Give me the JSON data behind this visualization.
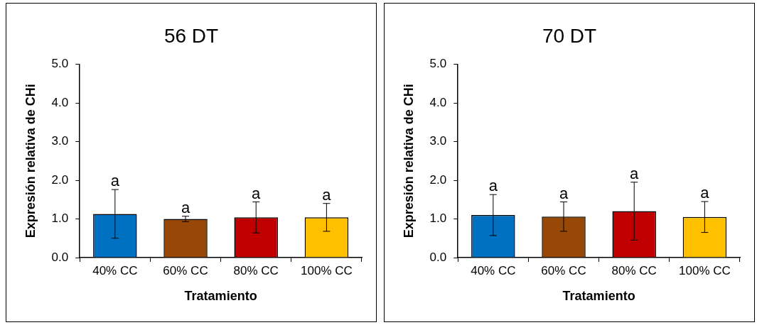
{
  "chart_data": [
    {
      "type": "bar",
      "title": "56 DT",
      "xlabel": "Tratamiento",
      "ylabel": "Expresión relativa de CHi",
      "categories": [
        "40% CC",
        "60% CC",
        "80% CC",
        "100% CC"
      ],
      "values": [
        1.13,
        1.0,
        1.04,
        1.04
      ],
      "errors": [
        0.63,
        0.07,
        0.4,
        0.36
      ],
      "colors": [
        "#0070c0",
        "#974706",
        "#c00000",
        "#ffc000"
      ],
      "ylim": [
        0,
        5
      ],
      "yticks": [
        {
          "value": 0,
          "label": "0.0"
        },
        {
          "value": 1,
          "label": "1.0"
        },
        {
          "value": 2,
          "label": "2.0"
        },
        {
          "value": 3,
          "label": "3.0"
        },
        {
          "value": 4,
          "label": "4.0"
        },
        {
          "value": 5,
          "label": "5.0"
        }
      ],
      "grid": false,
      "legend": false,
      "annotations": [
        "a",
        "a",
        "a",
        "a"
      ]
    },
    {
      "type": "bar",
      "title": "70 DT",
      "xlabel": "Tratamiento",
      "ylabel": "Expresión relativa de CHi",
      "categories": [
        "40% CC",
        "60% CC",
        "80% CC",
        "100% CC"
      ],
      "values": [
        1.1,
        1.06,
        1.2,
        1.05
      ],
      "errors": [
        0.53,
        0.38,
        0.75,
        0.4
      ],
      "colors": [
        "#0070c0",
        "#974706",
        "#c00000",
        "#ffc000"
      ],
      "ylim": [
        0,
        5
      ],
      "yticks": [
        {
          "value": 0,
          "label": "0.0"
        },
        {
          "value": 1,
          "label": "1.0"
        },
        {
          "value": 2,
          "label": "2.0"
        },
        {
          "value": 3,
          "label": "3.0"
        },
        {
          "value": 4,
          "label": "4.0"
        },
        {
          "value": 5,
          "label": "5.0"
        }
      ],
      "grid": false,
      "legend": false,
      "annotations": [
        "a",
        "a",
        "a",
        "a"
      ]
    }
  ]
}
